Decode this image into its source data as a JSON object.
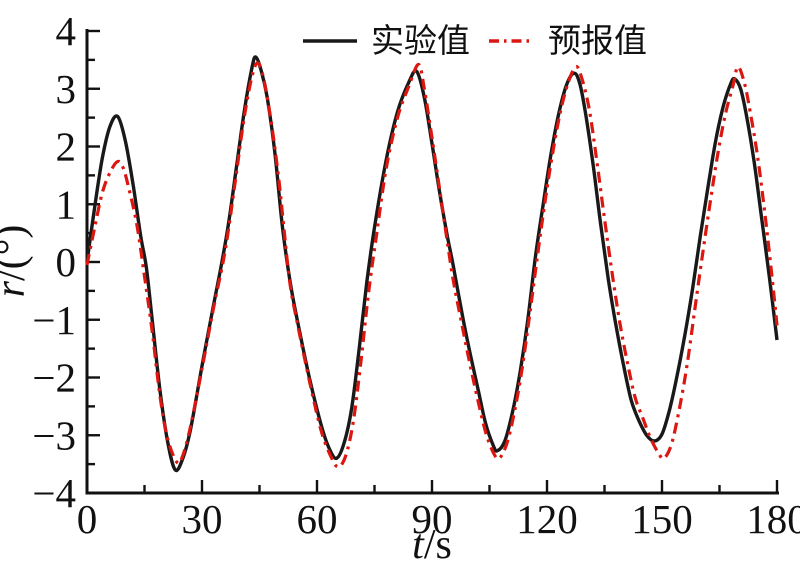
{
  "figure": {
    "background": "#ffffff"
  },
  "axes": {
    "x": {
      "title_italic": "t",
      "title_rest": "/s",
      "min": 0,
      "max": 180,
      "major_ticks": [
        0,
        30,
        60,
        90,
        120,
        150,
        180
      ],
      "tick_labels": [
        "0",
        "30",
        "60",
        "90",
        "120",
        "150",
        "180"
      ],
      "minor_ticks": [
        15,
        45,
        75,
        105,
        135,
        165
      ]
    },
    "y": {
      "title_italic": "r",
      "title_rest": "/(°)",
      "min": -4,
      "max": 4,
      "major_ticks": [
        4,
        3,
        2,
        1,
        0,
        -1,
        -2,
        -3,
        -4
      ],
      "tick_labels": [
        "4",
        "3",
        "2",
        "1",
        "0",
        "−1",
        "−2",
        "−3",
        "−4"
      ],
      "minor_ticks": [
        3.5,
        2.5,
        1.5,
        0.5,
        -0.5,
        -1.5,
        -2.5,
        -3.5
      ]
    }
  },
  "legend": {
    "items": [
      {
        "label": "实验值",
        "color": "#191919",
        "line_style": "solid"
      },
      {
        "label": "预报值",
        "color": "#dc1710",
        "line_style": "dash-dot"
      }
    ]
  },
  "chart_data": {
    "type": "line",
    "title": "",
    "xlabel": "t/s",
    "ylabel": "r/(°)",
    "xlim": [
      0,
      180
    ],
    "ylim": [
      -4,
      4
    ],
    "grid": false,
    "legend_position": "top-center-inside",
    "series": [
      {
        "name": "实验值",
        "color": "#191919",
        "line_style": "solid",
        "points": [
          [
            0,
            0
          ],
          [
            2,
            0.95
          ],
          [
            4,
            1.8
          ],
          [
            6,
            2.35
          ],
          [
            8,
            2.52
          ],
          [
            10,
            2.1
          ],
          [
            12,
            1.35
          ],
          [
            14,
            0.45
          ],
          [
            15.5,
            -0.1
          ],
          [
            17,
            -1.0
          ],
          [
            19,
            -2.2
          ],
          [
            21,
            -3.1
          ],
          [
            23,
            -3.6
          ],
          [
            25,
            -3.4
          ],
          [
            27,
            -2.9
          ],
          [
            30,
            -1.8
          ],
          [
            33,
            -0.75
          ],
          [
            35.2,
            0
          ],
          [
            37,
            0.7
          ],
          [
            39,
            1.65
          ],
          [
            41,
            2.6
          ],
          [
            43,
            3.35
          ],
          [
            44,
            3.55
          ],
          [
            45.5,
            3.3
          ],
          [
            47,
            2.85
          ],
          [
            49,
            1.9
          ],
          [
            51,
            0.6
          ],
          [
            53,
            -0.35
          ],
          [
            55,
            -1.05
          ],
          [
            58,
            -2.0
          ],
          [
            61,
            -2.8
          ],
          [
            63,
            -3.2
          ],
          [
            65,
            -3.4
          ],
          [
            67,
            -3.15
          ],
          [
            69,
            -2.55
          ],
          [
            71,
            -1.5
          ],
          [
            73,
            -0.35
          ],
          [
            75,
            0.6
          ],
          [
            78,
            1.75
          ],
          [
            81,
            2.6
          ],
          [
            84,
            3.12
          ],
          [
            86,
            3.3
          ],
          [
            88,
            2.85
          ],
          [
            90,
            2.05
          ],
          [
            92,
            1.2
          ],
          [
            94,
            0.45
          ],
          [
            95.5,
            -0.05
          ],
          [
            98,
            -0.95
          ],
          [
            100,
            -1.6
          ],
          [
            102,
            -2.2
          ],
          [
            104,
            -2.8
          ],
          [
            106,
            -3.18
          ],
          [
            107,
            -3.27
          ],
          [
            109,
            -3.1
          ],
          [
            111,
            -2.6
          ],
          [
            113,
            -1.9
          ],
          [
            115,
            -1.0
          ],
          [
            117,
            0.1
          ],
          [
            119,
            1.0
          ],
          [
            121,
            1.85
          ],
          [
            123,
            2.55
          ],
          [
            125,
            3.05
          ],
          [
            127,
            3.27
          ],
          [
            128.5,
            3.1
          ],
          [
            130,
            2.6
          ],
          [
            132,
            1.7
          ],
          [
            134,
            0.65
          ],
          [
            136,
            -0.3
          ],
          [
            138,
            -1.1
          ],
          [
            140,
            -1.8
          ],
          [
            142,
            -2.4
          ],
          [
            144,
            -2.75
          ],
          [
            146,
            -3.0
          ],
          [
            148,
            -3.1
          ],
          [
            150,
            -2.98
          ],
          [
            152,
            -2.55
          ],
          [
            154,
            -1.95
          ],
          [
            156,
            -1.25
          ],
          [
            158,
            -0.45
          ],
          [
            160,
            0.45
          ],
          [
            162,
            1.3
          ],
          [
            164,
            2.1
          ],
          [
            166,
            2.7
          ],
          [
            168,
            3.1
          ],
          [
            169,
            3.17
          ],
          [
            170.5,
            3.0
          ],
          [
            172,
            2.55
          ],
          [
            174,
            1.75
          ],
          [
            176,
            0.75
          ],
          [
            178,
            -0.25
          ],
          [
            180,
            -1.35
          ]
        ]
      },
      {
        "name": "预报值",
        "color": "#dc1710",
        "line_style": "dash-dot",
        "points": [
          [
            0,
            -0.05
          ],
          [
            2,
            0.6
          ],
          [
            4,
            1.2
          ],
          [
            6,
            1.55
          ],
          [
            8,
            1.74
          ],
          [
            9.5,
            1.62
          ],
          [
            11,
            1.25
          ],
          [
            13,
            0.65
          ],
          [
            15,
            -0.25
          ],
          [
            17,
            -1.2
          ],
          [
            19,
            -2.3
          ],
          [
            21,
            -3.05
          ],
          [
            23.5,
            -3.47
          ],
          [
            25,
            -3.35
          ],
          [
            27,
            -2.85
          ],
          [
            30,
            -1.85
          ],
          [
            33,
            -0.8
          ],
          [
            35.5,
            0
          ],
          [
            37,
            0.6
          ],
          [
            39,
            1.55
          ],
          [
            41,
            2.5
          ],
          [
            43,
            3.2
          ],
          [
            44.5,
            3.45
          ],
          [
            46,
            3.2
          ],
          [
            48,
            2.45
          ],
          [
            50,
            1.45
          ],
          [
            51.5,
            0.5
          ],
          [
            53,
            -0.4
          ],
          [
            55,
            -1.1
          ],
          [
            58,
            -2.05
          ],
          [
            61,
            -2.9
          ],
          [
            63.5,
            -3.35
          ],
          [
            65.5,
            -3.55
          ],
          [
            67.5,
            -3.35
          ],
          [
            69.5,
            -2.75
          ],
          [
            71.5,
            -1.7
          ],
          [
            73.5,
            -0.5
          ],
          [
            75.5,
            0.45
          ],
          [
            78,
            1.6
          ],
          [
            81,
            2.5
          ],
          [
            84,
            3.05
          ],
          [
            86.5,
            3.42
          ],
          [
            88,
            3.0
          ],
          [
            90,
            2.15
          ],
          [
            92,
            1.25
          ],
          [
            94,
            0.35
          ],
          [
            95.5,
            -0.3
          ],
          [
            98,
            -1.15
          ],
          [
            100,
            -1.8
          ],
          [
            102,
            -2.4
          ],
          [
            104,
            -2.95
          ],
          [
            106,
            -3.3
          ],
          [
            107.5,
            -3.4
          ],
          [
            109.5,
            -3.15
          ],
          [
            111.5,
            -2.6
          ],
          [
            113.5,
            -1.85
          ],
          [
            115.5,
            -0.9
          ],
          [
            117.5,
            0.1
          ],
          [
            119.5,
            1.05
          ],
          [
            121.5,
            1.9
          ],
          [
            123.5,
            2.6
          ],
          [
            125.5,
            3.1
          ],
          [
            127.5,
            3.38
          ],
          [
            129,
            3.2
          ],
          [
            131,
            2.65
          ],
          [
            133,
            1.75
          ],
          [
            135,
            0.75
          ],
          [
            137,
            -0.2
          ],
          [
            139,
            -1.05
          ],
          [
            141,
            -1.75
          ],
          [
            143,
            -2.35
          ],
          [
            145,
            -2.7
          ],
          [
            147,
            -3.05
          ],
          [
            149,
            -3.3
          ],
          [
            150.5,
            -3.4
          ],
          [
            152.5,
            -3.15
          ],
          [
            154.5,
            -2.55
          ],
          [
            156.5,
            -1.8
          ],
          [
            158.5,
            -0.85
          ],
          [
            160.5,
            0.1
          ],
          [
            162.5,
            1.0
          ],
          [
            164.5,
            1.85
          ],
          [
            166.5,
            2.55
          ],
          [
            168.5,
            3.05
          ],
          [
            169.8,
            3.38
          ],
          [
            171.5,
            3.1
          ],
          [
            173,
            2.6
          ],
          [
            175,
            1.8
          ],
          [
            177,
            0.75
          ],
          [
            179,
            -0.45
          ],
          [
            180,
            -1.1
          ]
        ]
      }
    ]
  }
}
